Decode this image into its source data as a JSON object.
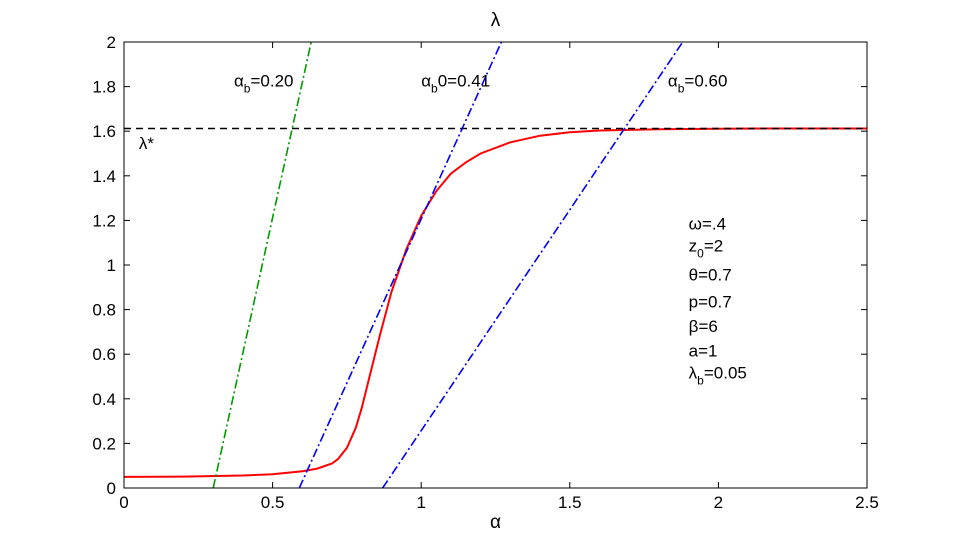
{
  "chart_data": {
    "type": "line",
    "title": "λ",
    "xlabel": "α",
    "ylabel": "",
    "xlim": [
      0,
      2.5
    ],
    "ylim": [
      0,
      2
    ],
    "xticks": [
      0,
      0.5,
      1,
      1.5,
      2,
      2.5
    ],
    "xtick_labels": [
      "0",
      "0.5",
      "1",
      "1.5",
      "2",
      "2.5"
    ],
    "yticks": [
      0,
      0.2,
      0.4,
      0.6,
      0.8,
      1,
      1.2,
      1.4,
      1.6,
      1.8,
      2
    ],
    "ytick_labels": [
      "0",
      "0.2",
      "0.4",
      "0.6",
      "0.8",
      "1",
      "1.2",
      "1.4",
      "1.6",
      "1.8",
      "2"
    ],
    "grid": false,
    "series": [
      {
        "color": "#ff0000",
        "style": "solid",
        "x": [
          0,
          0.2,
          0.4,
          0.5,
          0.6,
          0.65,
          0.7,
          0.72,
          0.75,
          0.78,
          0.8,
          0.83,
          0.86,
          0.9,
          0.95,
          1.0,
          1.05,
          1.1,
          1.15,
          1.2,
          1.3,
          1.4,
          1.5,
          1.6,
          1.8,
          2.0,
          2.2,
          2.5
        ],
        "y": [
          0.05,
          0.051,
          0.056,
          0.062,
          0.075,
          0.087,
          0.11,
          0.13,
          0.18,
          0.27,
          0.36,
          0.52,
          0.68,
          0.88,
          1.07,
          1.22,
          1.33,
          1.41,
          1.46,
          1.5,
          1.55,
          1.58,
          1.595,
          1.603,
          1.609,
          1.611,
          1.612,
          1.612
        ]
      },
      {
        "color": "#000000",
        "style": "dashed",
        "x": [
          0,
          2.5
        ],
        "y": [
          1.612,
          1.612
        ]
      },
      {
        "color": "#009900",
        "style": "dashdot",
        "x": [
          0.3,
          0.63
        ],
        "y": [
          0,
          2
        ]
      },
      {
        "color": "#0000ff",
        "style": "dashdot",
        "x": [
          0.59,
          1.27
        ],
        "y": [
          0,
          2
        ]
      },
      {
        "color": "#0000ff",
        "style": "dashdot",
        "x": [
          0.87,
          1.88
        ],
        "y": [
          0,
          2
        ]
      }
    ],
    "annotations": [
      {
        "text": "α",
        "sub": "b",
        "rest": "=0.20",
        "x": 0.37,
        "y": 1.8
      },
      {
        "text": "α",
        "sub": "b",
        "rest": "0=0.41",
        "x": 1.0,
        "y": 1.8
      },
      {
        "text": "α",
        "sub": "b",
        "rest": "=0.60",
        "x": 1.83,
        "y": 1.8
      },
      {
        "text": "λ*",
        "sub": "",
        "rest": "",
        "x": 0.05,
        "y": 1.52
      },
      {
        "text": "ω=.4",
        "sub": "",
        "rest": "",
        "x": 1.9,
        "y": 1.16
      },
      {
        "text": "z",
        "sub": "0",
        "rest": "=2",
        "x": 1.9,
        "y": 1.06
      },
      {
        "text": "θ=0.7",
        "sub": "",
        "rest": "",
        "x": 1.9,
        "y": 0.93
      },
      {
        "text": "p=0.7",
        "sub": "",
        "rest": "",
        "x": 1.9,
        "y": 0.81
      },
      {
        "text": "β=6",
        "sub": "",
        "rest": "",
        "x": 1.9,
        "y": 0.7
      },
      {
        "text": "a=1",
        "sub": "",
        "rest": "",
        "x": 1.9,
        "y": 0.59
      },
      {
        "text": "λ",
        "sub": "b",
        "rest": "=0.05",
        "x": 1.9,
        "y": 0.49
      }
    ]
  }
}
